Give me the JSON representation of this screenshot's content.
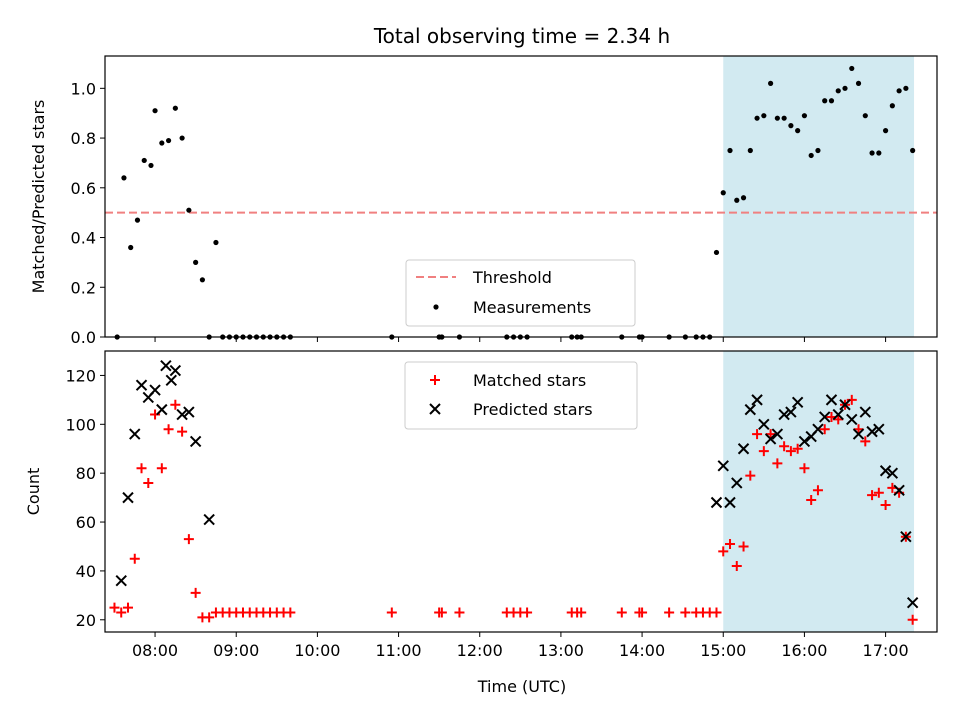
{
  "chart_data": [
    {
      "type": "scatter",
      "panel": "top",
      "title": "Total observing time = 2.34 h",
      "ylabel": "Matched/Predicted stars",
      "ylim": [
        0,
        1.13
      ],
      "yticks": [
        "0.0",
        "0.2",
        "0.4",
        "0.6",
        "0.8",
        "1.0"
      ],
      "highlight_span": {
        "start": "15:00",
        "end": "17:21",
        "color": "#add8e6"
      },
      "threshold": {
        "name": "Threshold",
        "value": 0.5,
        "color": "#f08080",
        "style": "dashed"
      },
      "legend": {
        "placement": "lower center",
        "entries": [
          "Threshold",
          "Measurements"
        ]
      },
      "series": [
        {
          "name": "Measurements",
          "color": "#000000",
          "marker": "dot",
          "points": [
            [
              "07:32",
              0.0
            ],
            [
              "07:37",
              0.64
            ],
            [
              "07:42",
              0.36
            ],
            [
              "07:47",
              0.47
            ],
            [
              "07:52",
              0.71
            ],
            [
              "07:57",
              0.69
            ],
            [
              "08:00",
              0.91
            ],
            [
              "08:05",
              0.78
            ],
            [
              "08:10",
              0.79
            ],
            [
              "08:15",
              0.92
            ],
            [
              "08:20",
              0.8
            ],
            [
              "08:25",
              0.51
            ],
            [
              "08:30",
              0.3
            ],
            [
              "08:35",
              0.23
            ],
            [
              "08:40",
              0.0
            ],
            [
              "08:45",
              0.38
            ],
            [
              "08:50",
              0.0
            ],
            [
              "08:55",
              0.0
            ],
            [
              "09:00",
              0.0
            ],
            [
              "09:05",
              0.0
            ],
            [
              "09:10",
              0.0
            ],
            [
              "09:15",
              0.0
            ],
            [
              "09:20",
              0.0
            ],
            [
              "09:25",
              0.0
            ],
            [
              "09:30",
              0.0
            ],
            [
              "09:35",
              0.0
            ],
            [
              "09:40",
              0.0
            ],
            [
              "10:55",
              0.0
            ],
            [
              "11:30",
              0.0
            ],
            [
              "11:32",
              0.0
            ],
            [
              "11:45",
              0.0
            ],
            [
              "12:20",
              0.0
            ],
            [
              "12:25",
              0.0
            ],
            [
              "12:30",
              0.0
            ],
            [
              "12:35",
              0.0
            ],
            [
              "13:08",
              0.0
            ],
            [
              "13:12",
              0.0
            ],
            [
              "13:15",
              0.0
            ],
            [
              "13:45",
              0.0
            ],
            [
              "13:58",
              0.0
            ],
            [
              "14:00",
              0.0
            ],
            [
              "14:20",
              0.0
            ],
            [
              "14:32",
              0.0
            ],
            [
              "14:40",
              0.0
            ],
            [
              "14:45",
              0.0
            ],
            [
              "14:50",
              0.0
            ],
            [
              "14:55",
              0.34
            ],
            [
              "15:00",
              0.58
            ],
            [
              "15:05",
              0.75
            ],
            [
              "15:10",
              0.55
            ],
            [
              "15:15",
              0.56
            ],
            [
              "15:20",
              0.75
            ],
            [
              "15:25",
              0.88
            ],
            [
              "15:30",
              0.89
            ],
            [
              "15:35",
              1.02
            ],
            [
              "15:40",
              0.88
            ],
            [
              "15:45",
              0.88
            ],
            [
              "15:50",
              0.85
            ],
            [
              "15:55",
              0.83
            ],
            [
              "16:00",
              0.89
            ],
            [
              "16:05",
              0.73
            ],
            [
              "16:10",
              0.75
            ],
            [
              "16:15",
              0.95
            ],
            [
              "16:20",
              0.95
            ],
            [
              "16:25",
              0.99
            ],
            [
              "16:30",
              1.0
            ],
            [
              "16:35",
              1.08
            ],
            [
              "16:40",
              1.02
            ],
            [
              "16:45",
              0.89
            ],
            [
              "16:50",
              0.74
            ],
            [
              "16:55",
              0.74
            ],
            [
              "17:00",
              0.83
            ],
            [
              "17:05",
              0.93
            ],
            [
              "17:10",
              0.99
            ],
            [
              "17:15",
              1.0
            ],
            [
              "17:20",
              0.75
            ]
          ]
        }
      ]
    },
    {
      "type": "scatter",
      "panel": "bottom",
      "xlabel": "Time (UTC)",
      "ylabel": "Count",
      "ylim": [
        15,
        130
      ],
      "yticks": [
        "20",
        "40",
        "60",
        "80",
        "100",
        "120"
      ],
      "xticks": [
        "08:00",
        "09:00",
        "10:00",
        "11:00",
        "12:00",
        "13:00",
        "14:00",
        "15:00",
        "16:00",
        "17:00"
      ],
      "highlight_span": {
        "start": "15:00",
        "end": "17:21",
        "color": "#add8e6"
      },
      "legend": {
        "placement": "upper center",
        "entries": [
          "Matched stars",
          "Predicted stars"
        ]
      },
      "series": [
        {
          "name": "Matched stars",
          "color": "#ff0000",
          "marker": "plus",
          "points": [
            [
              "07:30",
              25
            ],
            [
              "07:35",
              23
            ],
            [
              "07:40",
              25
            ],
            [
              "07:45",
              45
            ],
            [
              "07:50",
              82
            ],
            [
              "07:55",
              76
            ],
            [
              "08:00",
              104
            ],
            [
              "08:05",
              82
            ],
            [
              "08:10",
              98
            ],
            [
              "08:15",
              108
            ],
            [
              "08:20",
              97
            ],
            [
              "08:25",
              53
            ],
            [
              "08:30",
              31
            ],
            [
              "08:35",
              21
            ],
            [
              "08:40",
              21
            ],
            [
              "08:45",
              23
            ],
            [
              "08:50",
              23
            ],
            [
              "08:55",
              23
            ],
            [
              "09:00",
              23
            ],
            [
              "09:05",
              23
            ],
            [
              "09:10",
              23
            ],
            [
              "09:15",
              23
            ],
            [
              "09:20",
              23
            ],
            [
              "09:25",
              23
            ],
            [
              "09:30",
              23
            ],
            [
              "09:35",
              23
            ],
            [
              "09:40",
              23
            ],
            [
              "10:55",
              23
            ],
            [
              "11:30",
              23
            ],
            [
              "11:32",
              23
            ],
            [
              "11:45",
              23
            ],
            [
              "12:20",
              23
            ],
            [
              "12:25",
              23
            ],
            [
              "12:30",
              23
            ],
            [
              "12:35",
              23
            ],
            [
              "13:08",
              23
            ],
            [
              "13:12",
              23
            ],
            [
              "13:15",
              23
            ],
            [
              "13:45",
              23
            ],
            [
              "13:58",
              23
            ],
            [
              "14:00",
              23
            ],
            [
              "14:20",
              23
            ],
            [
              "14:32",
              23
            ],
            [
              "14:40",
              23
            ],
            [
              "14:45",
              23
            ],
            [
              "14:50",
              23
            ],
            [
              "14:55",
              23
            ],
            [
              "15:00",
              48
            ],
            [
              "15:05",
              51
            ],
            [
              "15:10",
              42
            ],
            [
              "15:15",
              50
            ],
            [
              "15:20",
              79
            ],
            [
              "15:25",
              96
            ],
            [
              "15:30",
              89
            ],
            [
              "15:35",
              96
            ],
            [
              "15:40",
              84
            ],
            [
              "15:45",
              91
            ],
            [
              "15:50",
              89
            ],
            [
              "15:55",
              90
            ],
            [
              "16:00",
              82
            ],
            [
              "16:05",
              69
            ],
            [
              "16:10",
              73
            ],
            [
              "16:15",
              98
            ],
            [
              "16:20",
              103
            ],
            [
              "16:25",
              102
            ],
            [
              "16:30",
              108
            ],
            [
              "16:35",
              110
            ],
            [
              "16:40",
              98
            ],
            [
              "16:45",
              93
            ],
            [
              "16:50",
              71
            ],
            [
              "16:55",
              72
            ],
            [
              "17:00",
              67
            ],
            [
              "17:05",
              74
            ],
            [
              "17:10",
              72
            ],
            [
              "17:15",
              54
            ],
            [
              "17:20",
              20
            ]
          ]
        },
        {
          "name": "Predicted stars",
          "color": "#000000",
          "marker": "x",
          "points": [
            [
              "07:35",
              36
            ],
            [
              "07:40",
              70
            ],
            [
              "07:45",
              96
            ],
            [
              "07:50",
              116
            ],
            [
              "07:55",
              111
            ],
            [
              "08:00",
              114
            ],
            [
              "08:05",
              106
            ],
            [
              "08:08",
              124
            ],
            [
              "08:12",
              118
            ],
            [
              "08:15",
              122
            ],
            [
              "08:20",
              104
            ],
            [
              "08:25",
              105
            ],
            [
              "08:30",
              93
            ],
            [
              "08:40",
              61
            ],
            [
              "14:55",
              68
            ],
            [
              "15:00",
              83
            ],
            [
              "15:05",
              68
            ],
            [
              "15:10",
              76
            ],
            [
              "15:15",
              90
            ],
            [
              "15:20",
              106
            ],
            [
              "15:25",
              110
            ],
            [
              "15:30",
              100
            ],
            [
              "15:35",
              94
            ],
            [
              "15:40",
              96
            ],
            [
              "15:45",
              104
            ],
            [
              "15:50",
              105
            ],
            [
              "15:55",
              109
            ],
            [
              "16:00",
              93
            ],
            [
              "16:05",
              95
            ],
            [
              "16:10",
              98
            ],
            [
              "16:15",
              103
            ],
            [
              "16:20",
              110
            ],
            [
              "16:25",
              104
            ],
            [
              "16:30",
              108
            ],
            [
              "16:35",
              102
            ],
            [
              "16:40",
              96
            ],
            [
              "16:45",
              105
            ],
            [
              "16:50",
              97
            ],
            [
              "16:55",
              98
            ],
            [
              "17:00",
              81
            ],
            [
              "17:05",
              80
            ],
            [
              "17:10",
              73
            ],
            [
              "17:15",
              54
            ],
            [
              "17:20",
              27
            ]
          ]
        }
      ]
    }
  ]
}
